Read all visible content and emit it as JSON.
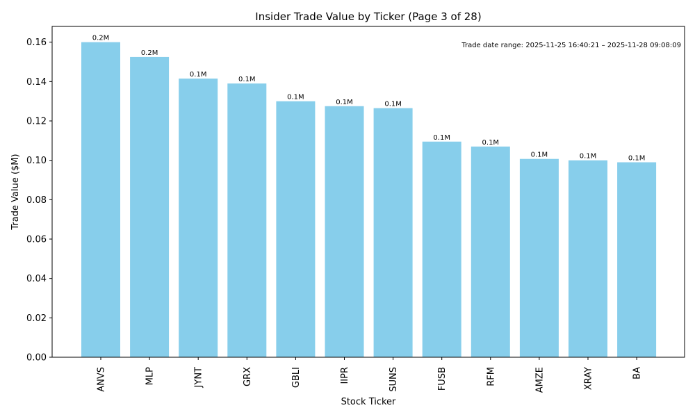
{
  "chart_data": {
    "type": "bar",
    "title": "Insider Trade Value by Ticker (Page 3 of 28)",
    "xlabel": "Stock Ticker",
    "ylabel": "Trade Value ($M)",
    "categories": [
      "ANVS",
      "MLP",
      "JYNT",
      "GRX",
      "GBLI",
      "IIPR",
      "SUNS",
      "FUSB",
      "RFM",
      "AMZE",
      "XRAY",
      "BA"
    ],
    "values": [
      0.16,
      0.1525,
      0.1415,
      0.139,
      0.13,
      0.1275,
      0.1265,
      0.1095,
      0.107,
      0.1007,
      0.1,
      0.099
    ],
    "data_labels": [
      "0.2M",
      "0.2M",
      "0.1M",
      "0.1M",
      "0.1M",
      "0.1M",
      "0.1M",
      "0.1M",
      "0.1M",
      "0.1M",
      "0.1M",
      "0.1M"
    ],
    "yticks": [
      0.0,
      0.02,
      0.04,
      0.06,
      0.08,
      0.1,
      0.12,
      0.14,
      0.16
    ],
    "ytick_labels": [
      "0.00",
      "0.02",
      "0.04",
      "0.06",
      "0.08",
      "0.10",
      "0.12",
      "0.14",
      "0.16"
    ],
    "ylim": [
      0,
      0.168
    ],
    "grid": false,
    "bar_color": "#87CEEB",
    "annotation": "Trade date range: 2025-11-25 16:40:21 – 2025-11-28 09:08:09"
  }
}
